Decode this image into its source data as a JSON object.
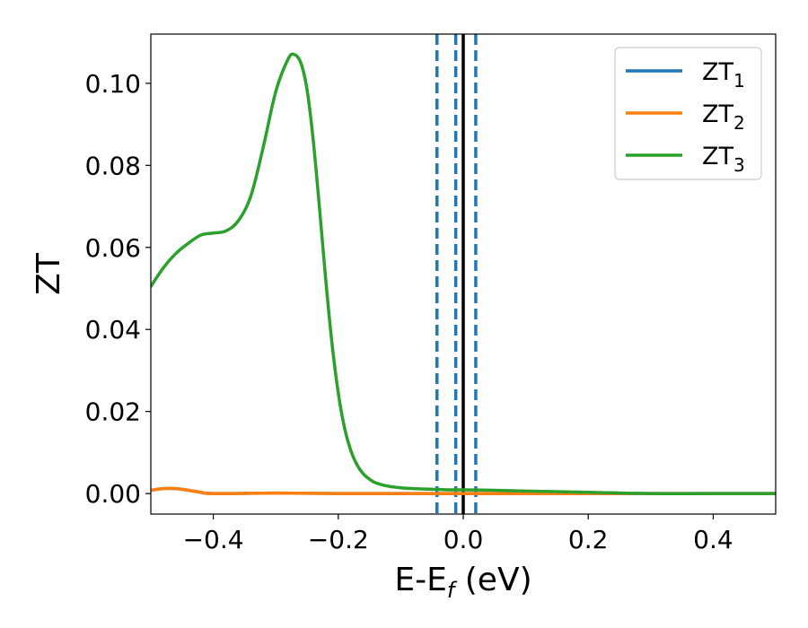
{
  "chart_data": {
    "type": "line",
    "xlabel": "E-E",
    "xlabel_sub": "f",
    "xlabel_unit": " (eV)",
    "ylabel": "ZT",
    "xlim": [
      -0.5,
      0.5
    ],
    "ylim": [
      -0.005,
      0.112
    ],
    "xticks": [
      -0.4,
      -0.2,
      0.0,
      0.2,
      0.4
    ],
    "xtick_labels": [
      "−0.4",
      "−0.2",
      "0.0",
      "0.2",
      "0.4"
    ],
    "yticks": [
      0.0,
      0.02,
      0.04,
      0.06,
      0.08,
      0.1
    ],
    "ytick_labels": [
      "0.00",
      "0.02",
      "0.04",
      "0.06",
      "0.08",
      "0.10"
    ],
    "legend_position": "top-right",
    "series": [
      {
        "name": "ZT",
        "sub": "1",
        "color": "#1f77b4",
        "x": [
          -0.5,
          -0.48,
          -0.46,
          -0.44,
          -0.42,
          -0.4,
          -0.3,
          -0.2,
          -0.1,
          0.0,
          0.5
        ],
        "y": [
          0.0008,
          0.0012,
          0.0012,
          0.0008,
          0.0003,
          0.0,
          0.0001,
          0.0,
          0.0,
          0.0,
          0.0
        ]
      },
      {
        "name": "ZT",
        "sub": "2",
        "color": "#ff7f0e",
        "x": [
          -0.5,
          -0.48,
          -0.46,
          -0.44,
          -0.42,
          -0.4,
          -0.3,
          -0.2,
          -0.1,
          0.0,
          0.5
        ],
        "y": [
          0.0008,
          0.0012,
          0.0012,
          0.0008,
          0.0003,
          0.0,
          0.0001,
          0.0,
          0.0,
          0.0,
          0.0
        ]
      },
      {
        "name": "ZT",
        "sub": "3",
        "color": "#2ca02c",
        "x": [
          -0.5,
          -0.48,
          -0.46,
          -0.44,
          -0.42,
          -0.4,
          -0.38,
          -0.36,
          -0.34,
          -0.32,
          -0.3,
          -0.28,
          -0.27,
          -0.26,
          -0.25,
          -0.24,
          -0.23,
          -0.22,
          -0.21,
          -0.2,
          -0.19,
          -0.18,
          -0.17,
          -0.16,
          -0.15,
          -0.14,
          -0.12,
          -0.1,
          -0.08,
          -0.06,
          -0.04,
          -0.02,
          0.0,
          0.05,
          0.1,
          0.2,
          0.3,
          0.4,
          0.5
        ],
        "y": [
          0.0505,
          0.055,
          0.0585,
          0.061,
          0.063,
          0.0635,
          0.064,
          0.0665,
          0.0725,
          0.0845,
          0.098,
          0.106,
          0.107,
          0.105,
          0.0985,
          0.086,
          0.0695,
          0.052,
          0.0365,
          0.0245,
          0.016,
          0.0105,
          0.007,
          0.0048,
          0.0035,
          0.0026,
          0.0018,
          0.0014,
          0.0012,
          0.0011,
          0.001,
          0.0009,
          0.0009,
          0.0008,
          0.0006,
          0.0003,
          0.0,
          0.0,
          0.0
        ]
      }
    ],
    "vlines": [
      {
        "x": -0.042,
        "style": "dashed",
        "color": "#1f77b4"
      },
      {
        "x": -0.012,
        "style": "dashed",
        "color": "#1f77b4"
      },
      {
        "x": 0.0,
        "style": "solid",
        "color": "#000000"
      },
      {
        "x": 0.02,
        "style": "dashed",
        "color": "#1f77b4"
      }
    ]
  }
}
